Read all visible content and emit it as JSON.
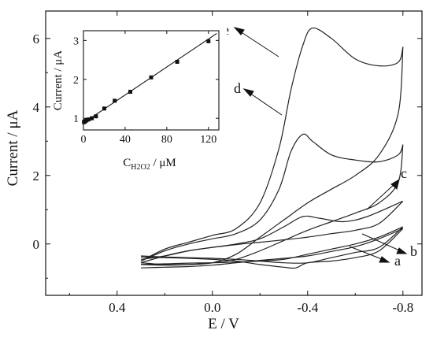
{
  "chart_data": [
    {
      "type": "line",
      "title": "",
      "xlabel": "E / V",
      "ylabel": "Current / μA",
      "xlim": [
        0.7,
        -0.88
      ],
      "ylim": [
        -1.5,
        6.8
      ],
      "x_ticks": [
        "0.4",
        "0.0",
        "-0.4",
        "-0.8"
      ],
      "x_tick_values": [
        0.4,
        0.0,
        -0.4,
        -0.8
      ],
      "y_ticks": [
        "0",
        "2",
        "4",
        "6"
      ],
      "y_tick_values": [
        0,
        2,
        4,
        6
      ],
      "series": [
        {
          "name": "a",
          "forward": [
            [
              0.3,
              -0.6
            ],
            [
              0.2,
              -0.58
            ],
            [
              0.1,
              -0.56
            ],
            [
              0.0,
              -0.55
            ],
            [
              -0.1,
              -0.53
            ],
            [
              -0.2,
              -0.5
            ],
            [
              -0.3,
              -0.45
            ],
            [
              -0.4,
              -0.3
            ],
            [
              -0.5,
              -0.15
            ],
            [
              -0.6,
              0.0
            ],
            [
              -0.7,
              0.2
            ],
            [
              -0.8,
              0.5
            ]
          ],
          "reverse": [
            [
              -0.8,
              0.5
            ],
            [
              -0.7,
              -0.1
            ],
            [
              -0.6,
              -0.25
            ],
            [
              -0.5,
              -0.4
            ],
            [
              -0.4,
              -0.55
            ],
            [
              -0.3,
              -0.55
            ],
            [
              -0.2,
              -0.5
            ],
            [
              -0.1,
              -0.45
            ],
            [
              0.0,
              -0.42
            ],
            [
              0.1,
              -0.4
            ],
            [
              0.2,
              -0.38
            ],
            [
              0.3,
              -0.35
            ]
          ]
        },
        {
          "name": "b",
          "forward": [
            [
              0.3,
              -0.7
            ],
            [
              0.2,
              -0.68
            ],
            [
              0.1,
              -0.66
            ],
            [
              0.0,
              -0.62
            ],
            [
              -0.1,
              -0.55
            ],
            [
              -0.2,
              -0.48
            ],
            [
              -0.3,
              -0.42
            ],
            [
              -0.4,
              -0.35
            ],
            [
              -0.5,
              -0.22
            ],
            [
              -0.6,
              -0.08
            ],
            [
              -0.7,
              0.15
            ],
            [
              -0.8,
              0.45
            ]
          ],
          "reverse": [
            [
              -0.8,
              0.45
            ],
            [
              -0.7,
              -0.2
            ],
            [
              -0.6,
              -0.4
            ],
            [
              -0.5,
              -0.5
            ],
            [
              -0.4,
              -0.55
            ],
            [
              -0.35,
              -0.7
            ],
            [
              -0.3,
              -0.68
            ],
            [
              -0.2,
              -0.6
            ],
            [
              -0.1,
              -0.5
            ],
            [
              0.0,
              -0.45
            ],
            [
              0.1,
              -0.42
            ],
            [
              0.2,
              -0.4
            ],
            [
              0.3,
              -0.38
            ]
          ]
        },
        {
          "name": "c",
          "forward": [
            [
              0.3,
              -0.55
            ],
            [
              0.2,
              -0.35
            ],
            [
              0.1,
              -0.2
            ],
            [
              0.0,
              -0.1
            ],
            [
              -0.1,
              0.0
            ],
            [
              -0.2,
              0.15
            ],
            [
              -0.3,
              0.5
            ],
            [
              -0.38,
              0.8
            ],
            [
              -0.45,
              0.75
            ],
            [
              -0.55,
              0.65
            ],
            [
              -0.65,
              0.8
            ],
            [
              -0.8,
              1.25
            ]
          ],
          "reverse": [
            [
              -0.8,
              1.25
            ],
            [
              -0.7,
              0.6
            ],
            [
              -0.6,
              0.4
            ],
            [
              -0.5,
              0.3
            ],
            [
              -0.4,
              0.2
            ],
            [
              -0.3,
              0.12
            ],
            [
              -0.2,
              0.05
            ],
            [
              -0.1,
              -0.02
            ],
            [
              0.0,
              -0.1
            ],
            [
              0.1,
              -0.2
            ],
            [
              0.2,
              -0.35
            ],
            [
              0.3,
              -0.45
            ]
          ]
        },
        {
          "name": "d",
          "forward": [
            [
              0.3,
              -0.5
            ],
            [
              0.2,
              -0.2
            ],
            [
              0.1,
              0.0
            ],
            [
              0.0,
              0.15
            ],
            [
              -0.1,
              0.3
            ],
            [
              -0.2,
              0.7
            ],
            [
              -0.28,
              1.6
            ],
            [
              -0.33,
              2.7
            ],
            [
              -0.38,
              3.2
            ],
            [
              -0.42,
              3.0
            ],
            [
              -0.5,
              2.6
            ],
            [
              -0.6,
              2.45
            ],
            [
              -0.7,
              2.4
            ],
            [
              -0.78,
              2.6
            ],
            [
              -0.8,
              2.9
            ]
          ],
          "reverse": [
            [
              -0.8,
              2.9
            ],
            [
              -0.78,
              1.8
            ],
            [
              -0.7,
              1.2
            ],
            [
              -0.6,
              0.9
            ],
            [
              -0.5,
              0.65
            ],
            [
              -0.4,
              0.4
            ],
            [
              -0.3,
              0.1
            ],
            [
              -0.2,
              -0.2
            ],
            [
              -0.1,
              -0.45
            ],
            [
              0.0,
              -0.55
            ],
            [
              0.1,
              -0.6
            ],
            [
              0.2,
              -0.6
            ],
            [
              0.3,
              -0.55
            ]
          ]
        },
        {
          "name": "e",
          "forward": [
            [
              0.3,
              -0.5
            ],
            [
              0.2,
              -0.15
            ],
            [
              0.1,
              0.05
            ],
            [
              0.0,
              0.25
            ],
            [
              -0.1,
              0.45
            ],
            [
              -0.2,
              1.2
            ],
            [
              -0.28,
              2.8
            ],
            [
              -0.33,
              4.5
            ],
            [
              -0.38,
              5.8
            ],
            [
              -0.42,
              6.3
            ],
            [
              -0.5,
              6.0
            ],
            [
              -0.6,
              5.4
            ],
            [
              -0.7,
              5.2
            ],
            [
              -0.78,
              5.3
            ],
            [
              -0.8,
              5.75
            ]
          ],
          "reverse": [
            [
              -0.8,
              5.75
            ],
            [
              -0.78,
              3.8
            ],
            [
              -0.7,
              2.6
            ],
            [
              -0.6,
              2.0
            ],
            [
              -0.5,
              1.6
            ],
            [
              -0.4,
              1.2
            ],
            [
              -0.3,
              0.7
            ],
            [
              -0.2,
              0.2
            ],
            [
              -0.1,
              -0.3
            ],
            [
              0.0,
              -0.55
            ],
            [
              0.1,
              -0.6
            ],
            [
              0.2,
              -0.62
            ],
            [
              0.3,
              -0.6
            ]
          ]
        }
      ],
      "annotations": [
        "a",
        "b",
        "c",
        "d",
        "e"
      ]
    },
    {
      "type": "scatter",
      "title": "",
      "xlabel": "C",
      "xlabel_sub": "H2O2",
      "xlabel_unit": " / μM",
      "ylabel": "Current / μA",
      "xlim": [
        0,
        130
      ],
      "ylim": [
        0.7,
        3.25
      ],
      "x_ticks": [
        "0",
        "40",
        "80",
        "120"
      ],
      "x_tick_values": [
        0,
        40,
        80,
        120
      ],
      "y_ticks": [
        "1",
        "2",
        "3"
      ],
      "y_tick_values": [
        1,
        2,
        3
      ],
      "x": [
        0.5,
        1,
        2,
        3,
        5,
        8,
        12,
        20,
        30,
        45,
        65,
        90,
        120
      ],
      "y": [
        0.9,
        0.91,
        0.93,
        0.95,
        0.97,
        1.0,
        1.05,
        1.25,
        1.45,
        1.68,
        2.05,
        2.45,
        2.98
      ],
      "fit_line": [
        [
          0,
          0.88
        ],
        [
          128,
          3.18
        ]
      ]
    }
  ]
}
